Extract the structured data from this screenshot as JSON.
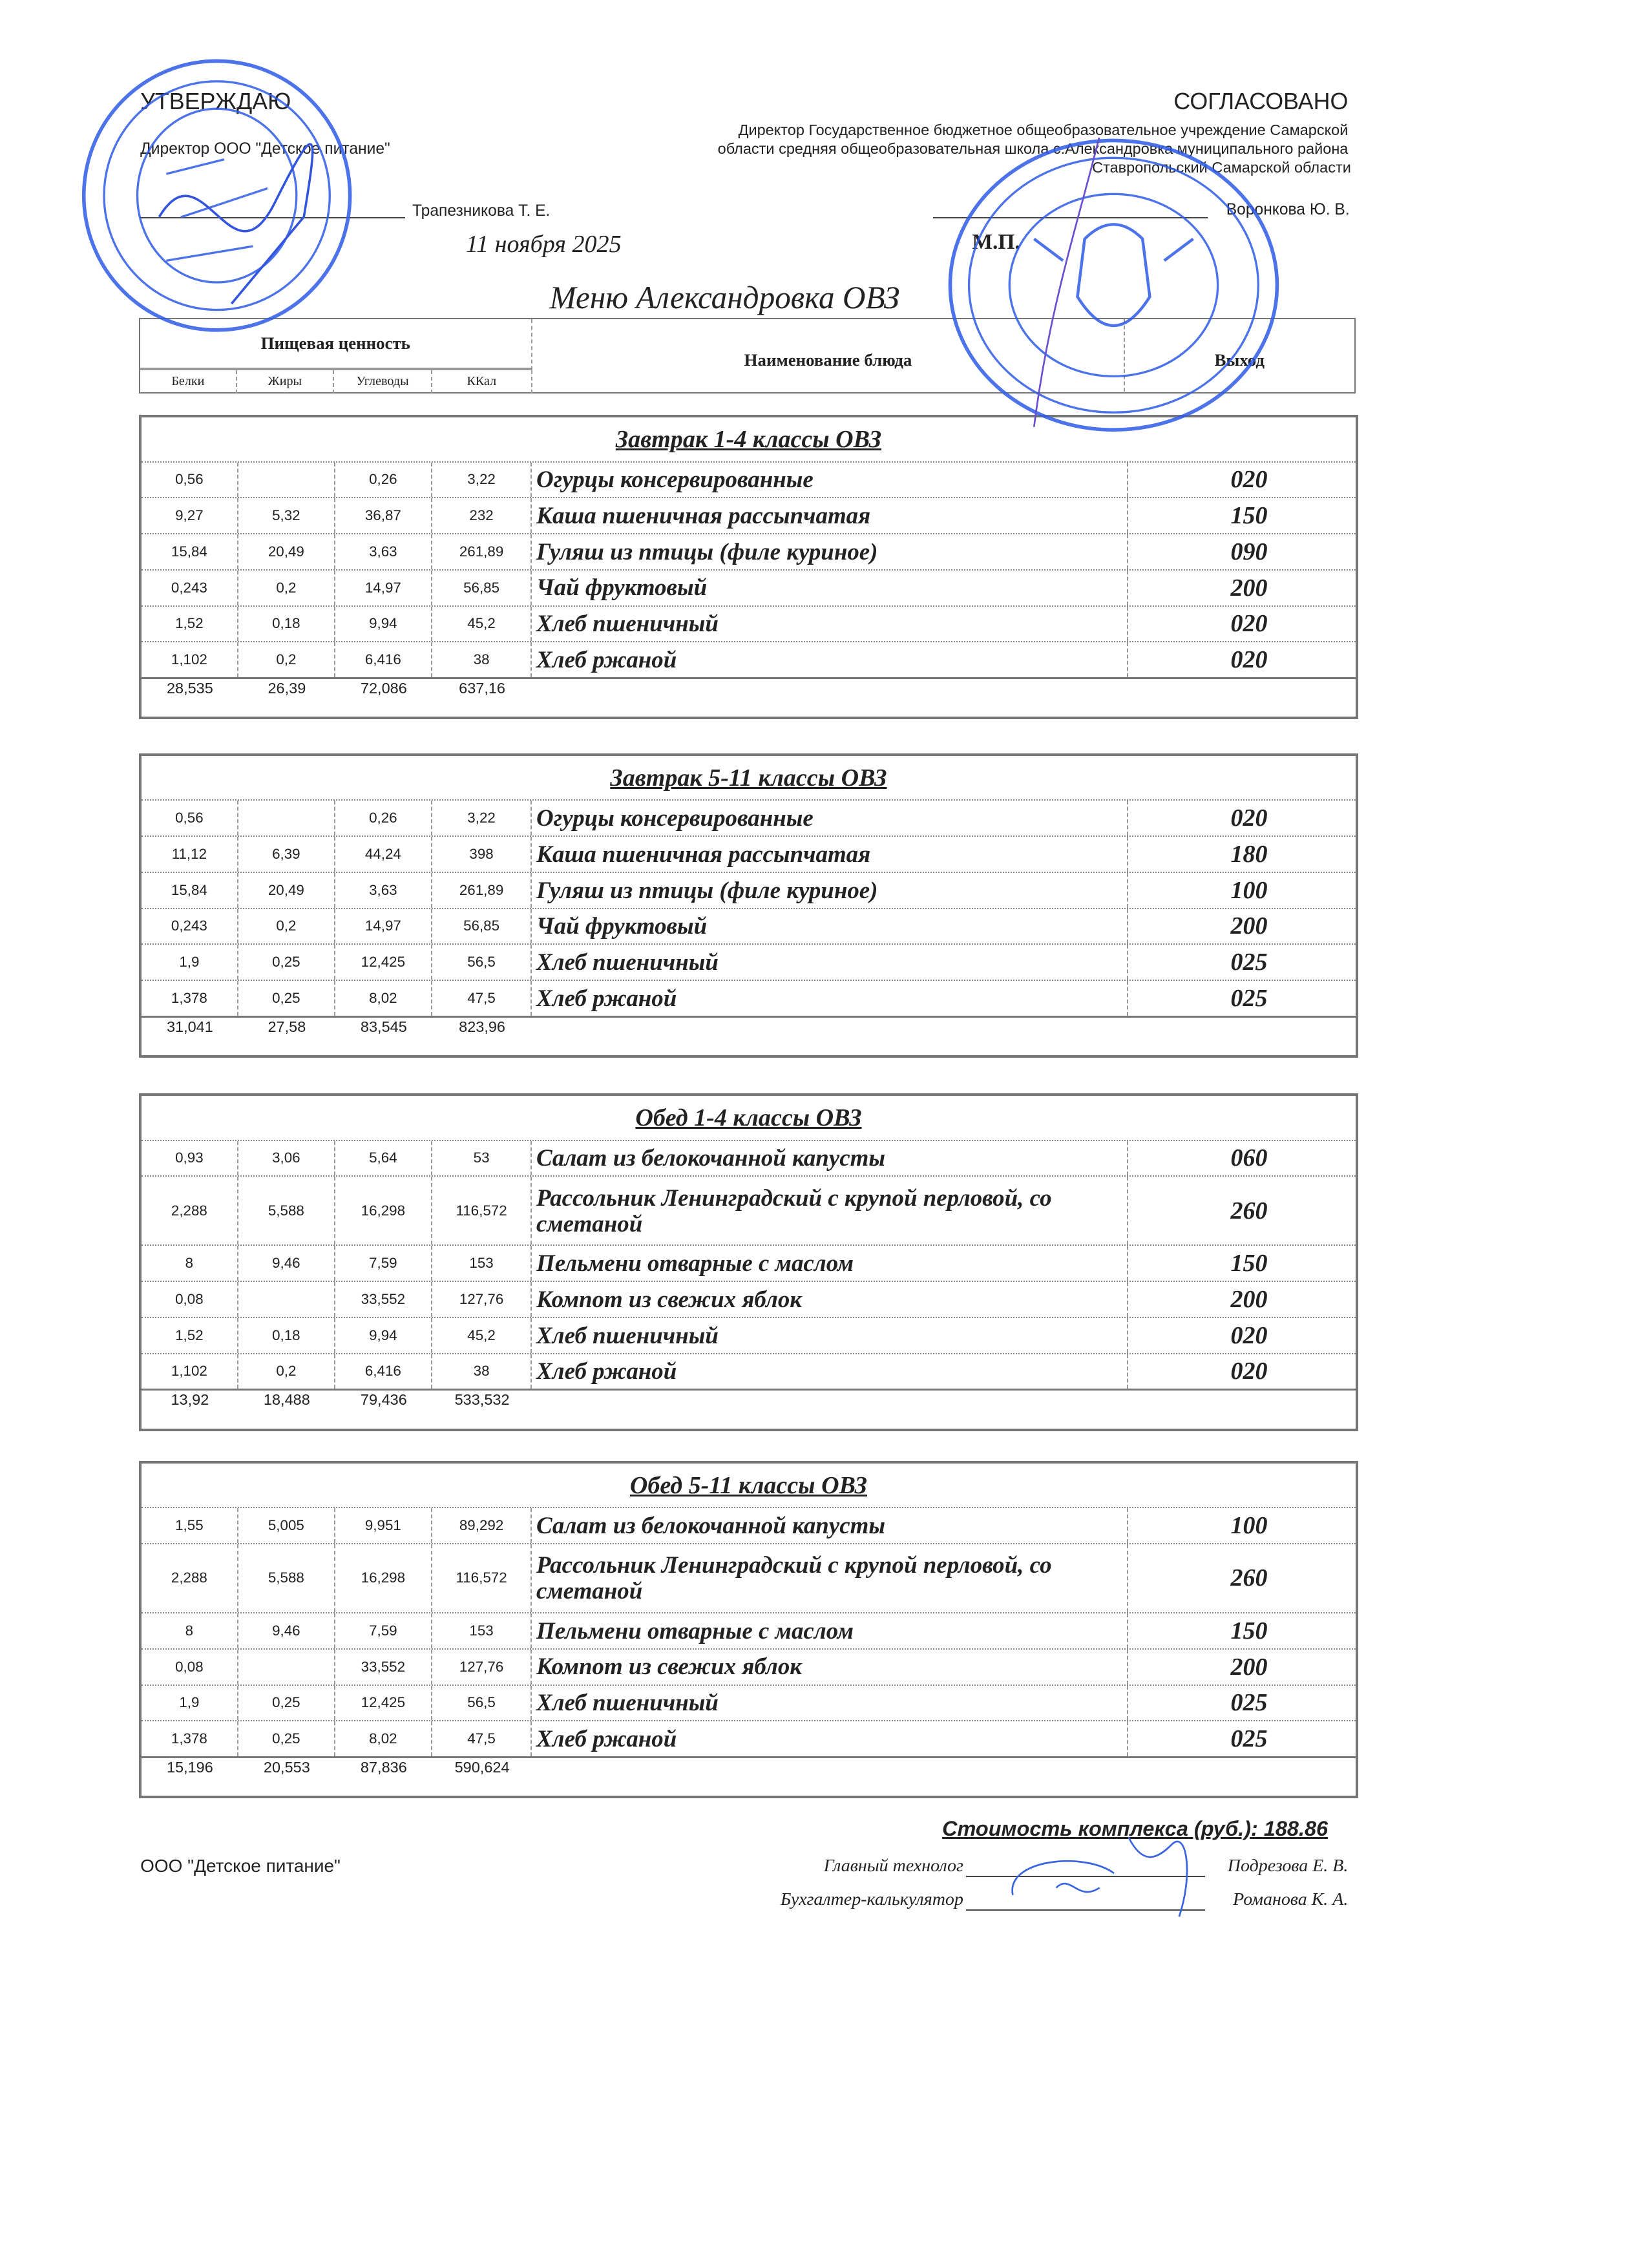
{
  "approve": {
    "heading": "УТВЕРЖДАЮ",
    "position": "Директор ООО \"Детское питание\"",
    "signer": "Трапезникова Т. Е.",
    "date": "11 ноября 2025"
  },
  "agree": {
    "heading": "СОГЛАСОВАНО",
    "position_lines": [
      "Директор Государственное бюджетное общеобразовательное учреждение Самарской",
      "области средняя общеобразовательная школа с.Александровка муниципального района",
      "Ставропольский Самарской области"
    ],
    "signer": "Воронкова Ю. В.",
    "stamp_mark": "М.П."
  },
  "title": "Меню Александровка ОВЗ",
  "header": {
    "nutrition": "Пищевая ценность",
    "cols": [
      "Белки",
      "Жиры",
      "Углеводы",
      "ККал"
    ],
    "name": "Наименование блюда",
    "output": "Выход"
  },
  "sections": [
    {
      "title": "Завтрак 1-4 классы ОВЗ",
      "rows": [
        {
          "b": "0,56",
          "f": "",
          "c": "0,26",
          "k": "3,22",
          "name": "Огурцы консервированные",
          "out": "020"
        },
        {
          "b": "9,27",
          "f": "5,32",
          "c": "36,87",
          "k": "232",
          "name": "Каша пшеничная рассыпчатая",
          "out": "150"
        },
        {
          "b": "15,84",
          "f": "20,49",
          "c": "3,63",
          "k": "261,89",
          "name": "Гуляш из птицы (филе куриное)",
          "out": "090"
        },
        {
          "b": "0,243",
          "f": "0,2",
          "c": "14,97",
          "k": "56,85",
          "name": "Чай фруктовый",
          "out": "200"
        },
        {
          "b": "1,52",
          "f": "0,18",
          "c": "9,94",
          "k": "45,2",
          "name": "Хлеб пшеничный",
          "out": "020"
        },
        {
          "b": "1,102",
          "f": "0,2",
          "c": "6,416",
          "k": "38",
          "name": "Хлеб ржаной",
          "out": "020"
        }
      ],
      "totals": [
        "28,535",
        "26,39",
        "72,086",
        "637,16"
      ]
    },
    {
      "title": "Завтрак 5-11 классы ОВЗ",
      "rows": [
        {
          "b": "0,56",
          "f": "",
          "c": "0,26",
          "k": "3,22",
          "name": "Огурцы консервированные",
          "out": "020"
        },
        {
          "b": "11,12",
          "f": "6,39",
          "c": "44,24",
          "k": "398",
          "name": "Каша пшеничная рассыпчатая",
          "out": "180"
        },
        {
          "b": "15,84",
          "f": "20,49",
          "c": "3,63",
          "k": "261,89",
          "name": "Гуляш из птицы (филе куриное)",
          "out": "100"
        },
        {
          "b": "0,243",
          "f": "0,2",
          "c": "14,97",
          "k": "56,85",
          "name": "Чай фруктовый",
          "out": "200"
        },
        {
          "b": "1,9",
          "f": "0,25",
          "c": "12,425",
          "k": "56,5",
          "name": "Хлеб пшеничный",
          "out": "025"
        },
        {
          "b": "1,378",
          "f": "0,25",
          "c": "8,02",
          "k": "47,5",
          "name": "Хлеб ржаной",
          "out": "025"
        }
      ],
      "totals": [
        "31,041",
        "27,58",
        "83,545",
        "823,96"
      ]
    },
    {
      "title": "Обед 1-4 классы ОВЗ",
      "rows": [
        {
          "b": "0,93",
          "f": "3,06",
          "c": "5,64",
          "k": "53",
          "name": "Салат из белокочанной капусты",
          "out": "060"
        },
        {
          "b": "2,288",
          "f": "5,588",
          "c": "16,298",
          "k": "116,572",
          "name": "Рассольник Ленинградский с крупой перловой, со сметаной",
          "out": "260"
        },
        {
          "b": "8",
          "f": "9,46",
          "c": "7,59",
          "k": "153",
          "name": "Пельмени отварные с маслом",
          "out": "150"
        },
        {
          "b": "0,08",
          "f": "",
          "c": "33,552",
          "k": "127,76",
          "name": "Компот из свежих яблок",
          "out": "200"
        },
        {
          "b": "1,52",
          "f": "0,18",
          "c": "9,94",
          "k": "45,2",
          "name": "Хлеб пшеничный",
          "out": "020"
        },
        {
          "b": "1,102",
          "f": "0,2",
          "c": "6,416",
          "k": "38",
          "name": "Хлеб ржаной",
          "out": "020"
        }
      ],
      "totals": [
        "13,92",
        "18,488",
        "79,436",
        "533,532"
      ]
    },
    {
      "title": "Обед 5-11 классы ОВЗ",
      "rows": [
        {
          "b": "1,55",
          "f": "5,005",
          "c": "9,951",
          "k": "89,292",
          "name": "Салат из белокочанной капусты",
          "out": "100"
        },
        {
          "b": "2,288",
          "f": "5,588",
          "c": "16,298",
          "k": "116,572",
          "name": "Рассольник Ленинградский с крупой перловой, со сметаной",
          "out": "260"
        },
        {
          "b": "8",
          "f": "9,46",
          "c": "7,59",
          "k": "153",
          "name": "Пельмени отварные с маслом",
          "out": "150"
        },
        {
          "b": "0,08",
          "f": "",
          "c": "33,552",
          "k": "127,76",
          "name": "Компот из свежих яблок",
          "out": "200"
        },
        {
          "b": "1,9",
          "f": "0,25",
          "c": "12,425",
          "k": "56,5",
          "name": "Хлеб пшеничный",
          "out": "025"
        },
        {
          "b": "1,378",
          "f": "0,25",
          "c": "8,02",
          "k": "47,5",
          "name": "Хлеб ржаной",
          "out": "025"
        }
      ],
      "totals": [
        "15,196",
        "20,553",
        "87,836",
        "590,624"
      ]
    }
  ],
  "footer": {
    "cost": "Стоимость комплекса (руб.): 188.86",
    "company": "ООО \"Детское питание\"",
    "tech_role": "Главный технолог",
    "tech_name": "Подрезова Е. В.",
    "acc_role": "Бухгалтер-калькулятор",
    "acc_name": "Романова К. А."
  },
  "colors": {
    "stamp": "#2f5be8",
    "text": "#222222",
    "border": "#777777"
  }
}
